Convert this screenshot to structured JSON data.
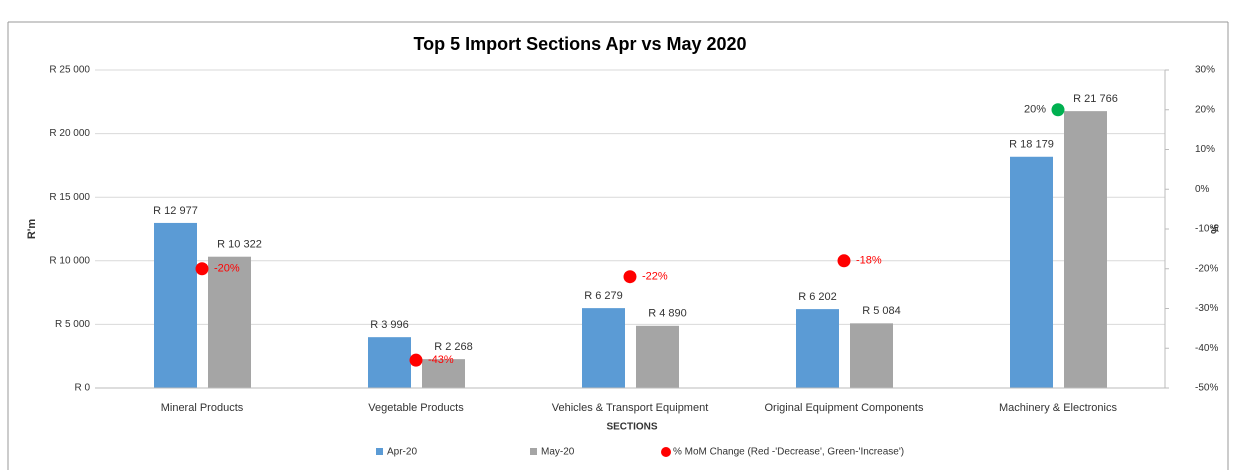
{
  "chart_data": {
    "type": "bar",
    "title": "Top 5 Import Sections Apr vs May 2020",
    "x_label": "SECTIONS",
    "y_label": "R'm",
    "y2_label": "%",
    "categories": [
      "Mineral Products",
      "Vegetable Products",
      "Vehicles & Transport Equipment",
      "Original Equipment Components",
      "Machinery & Electronics"
    ],
    "series": [
      {
        "name": "Apr-20",
        "color": "#5b9bd5",
        "values": [
          12977,
          3996,
          6279,
          6202,
          18179
        ],
        "value_labels": [
          "R 12 977",
          "R 3 996",
          "R 6 279",
          "R 6 202",
          "R 18 179"
        ]
      },
      {
        "name": "May-20",
        "color": "#a5a5a5",
        "values": [
          10322,
          2268,
          4890,
          5084,
          21766
        ],
        "value_labels": [
          "R 10 322",
          "R 2 268",
          "R 4 890",
          "R 5 084",
          "R 21 766"
        ]
      },
      {
        "name": "% MoM Change (Red -'Decrease', Green-'Increase')",
        "type": "scatter",
        "axis": "y2",
        "color": "#ff0000",
        "colors": [
          "#ff0000",
          "#ff0000",
          "#ff0000",
          "#ff0000",
          "#00b050"
        ],
        "values": [
          -20,
          -43,
          -22,
          -18,
          20
        ],
        "value_labels": [
          "-20%",
          "-43%",
          "-22%",
          "-18%",
          "20%"
        ]
      }
    ],
    "ylim": [
      0,
      25000
    ],
    "yticks": [
      {
        "value": 0,
        "label": "R 0"
      },
      {
        "value": 5000,
        "label": "R 5 000"
      },
      {
        "value": 10000,
        "label": "R 10 000"
      },
      {
        "value": 15000,
        "label": "R 15 000"
      },
      {
        "value": 20000,
        "label": "R 20 000"
      },
      {
        "value": 25000,
        "label": "R 25 000"
      }
    ],
    "y2lim": [
      -50,
      30
    ],
    "y2ticks": [
      {
        "value": -50,
        "label": "-50%"
      },
      {
        "value": -40,
        "label": "-40%"
      },
      {
        "value": -30,
        "label": "-30%"
      },
      {
        "value": -20,
        "label": "-20%"
      },
      {
        "value": -10,
        "label": "-10%"
      },
      {
        "value": 0,
        "label": "0%"
      },
      {
        "value": 10,
        "label": "10%"
      },
      {
        "value": 20,
        "label": "20%"
      },
      {
        "value": 30,
        "label": "30%"
      }
    ],
    "grid": true
  }
}
